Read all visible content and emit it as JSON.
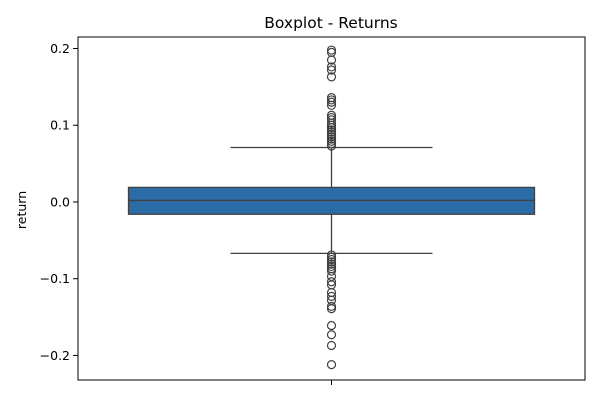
{
  "chart_data": {
    "type": "box",
    "title": "Boxplot - Returns",
    "xlabel": "",
    "ylabel": "return",
    "ylim": [
      -0.232,
      0.215
    ],
    "yticks": [
      0.2,
      0.1,
      0.0,
      -0.1,
      -0.2
    ],
    "ytick_labels": [
      "0.2",
      "0.1",
      "0.0",
      "−0.1",
      "−0.2"
    ],
    "xtick_labels": [
      ""
    ],
    "grid": false,
    "legend": "none",
    "colors": {
      "box_fill": "#2b6ca8",
      "line": "#404040",
      "axis": "#000000"
    },
    "box": {
      "whisker_high": 0.071,
      "q3": 0.019,
      "median": 0.002,
      "q1": -0.016,
      "whisker_low": -0.067,
      "outliers": [
        0.198,
        0.195,
        0.185,
        0.176,
        0.172,
        0.163,
        0.136,
        0.133,
        0.13,
        0.126,
        0.113,
        0.11,
        0.107,
        0.103,
        0.1,
        0.097,
        0.094,
        0.091,
        0.088,
        0.085,
        0.082,
        0.079,
        0.076,
        0.073,
        -0.069,
        -0.072,
        -0.075,
        -0.078,
        -0.081,
        -0.084,
        -0.087,
        -0.09,
        -0.097,
        -0.104,
        -0.108,
        -0.118,
        -0.123,
        -0.128,
        -0.136,
        -0.139,
        -0.161,
        -0.173,
        -0.187,
        -0.212
      ]
    }
  }
}
